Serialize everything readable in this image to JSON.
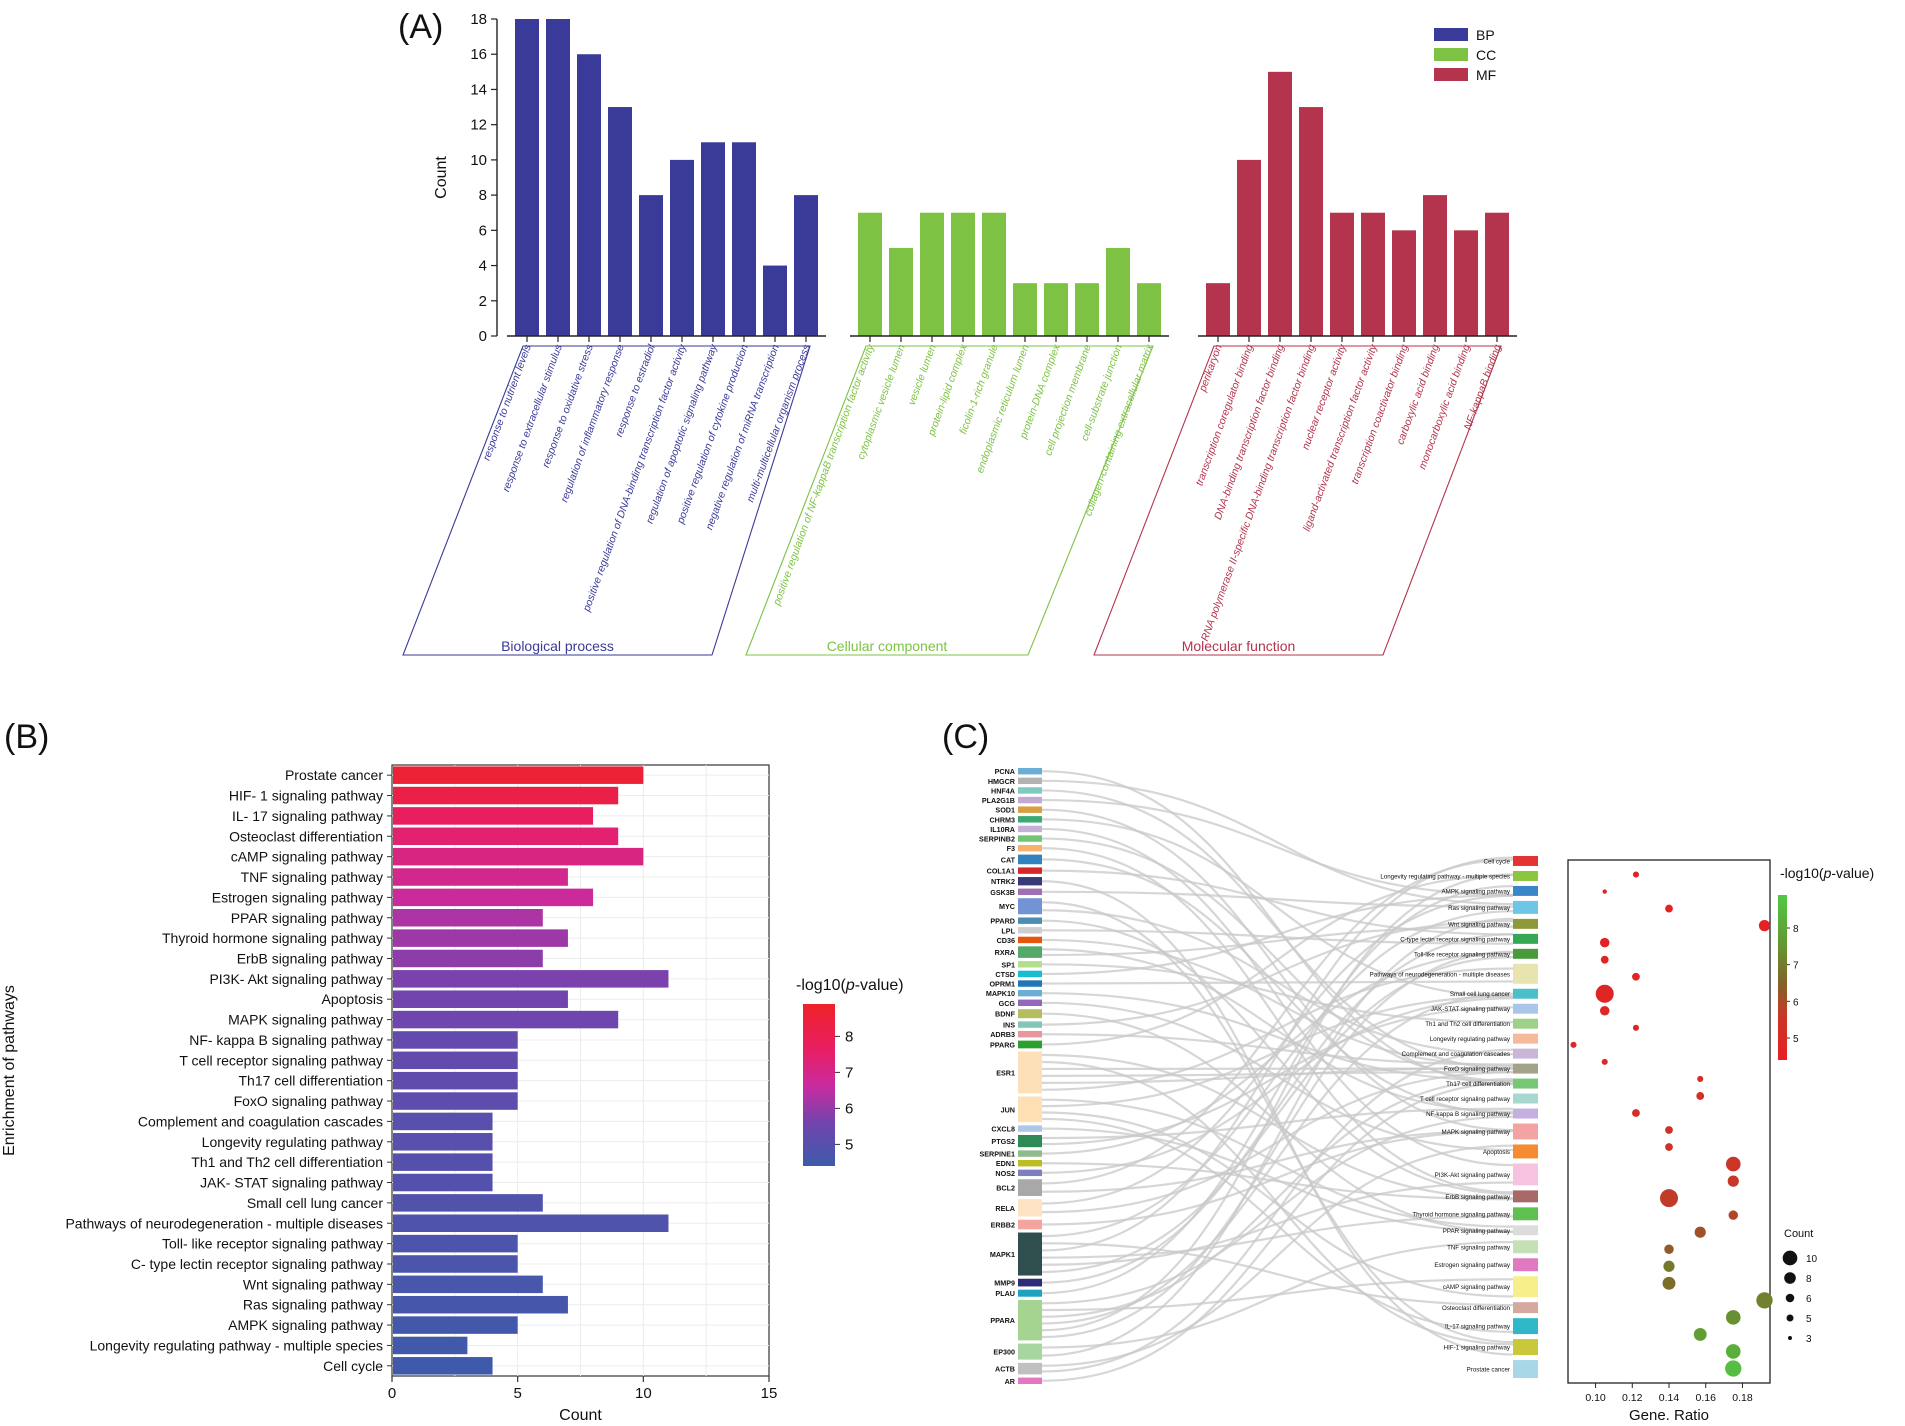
{
  "panels": {
    "a": "(A)",
    "b": "(B)",
    "c": "(C)"
  },
  "colors": {
    "BP": "#3a3a98",
    "CC": "#7dc243",
    "MF": "#b3344c",
    "flow": "#c8c8c8"
  },
  "chart_data": [
    {
      "type": "bar",
      "panel": "A",
      "ylabel": "Count",
      "ylim": [
        0,
        18
      ],
      "yticks": [
        0,
        2,
        4,
        6,
        8,
        10,
        12,
        14,
        16,
        18
      ],
      "legend": [
        "BP",
        "CC",
        "MF"
      ],
      "legend_position": "top-right",
      "groups": [
        {
          "key": "BP",
          "name": "Biological process",
          "categories": [
            "response to nutrient levels",
            "response to extracellular stimulus",
            "response to oxidative stress",
            "regulation of inflammatory response",
            "response to estradiol",
            "positive regulation of DNA-binding transcription factor activity",
            "regulation of apoptotic signaling pathway",
            "positive regulation of cytokine production",
            "negative regulation of miRNA transcription",
            "multi-multicellular organism process"
          ],
          "values": [
            18,
            18,
            16,
            13,
            8,
            10,
            11,
            11,
            4,
            8
          ]
        },
        {
          "key": "CC",
          "name": "Cellular component",
          "categories": [
            "positive regulation of NF-kappaB transcription factor activity",
            "cytoplasmic vesicle lumen",
            "vesicle lumen",
            "protein-lipid complex",
            "ficolin-1-rich granule",
            "endoplasmic reticulum lumen",
            "protein-DNA complex",
            "cell projection membrane",
            "cell-substrate junction",
            "collagen-containing extracellular matrix"
          ],
          "values": [
            7,
            5,
            7,
            7,
            7,
            3,
            3,
            3,
            5,
            3
          ]
        },
        {
          "key": "MF",
          "name": "Molecular function",
          "categories": [
            "perikaryon",
            "transcription coregulator binding",
            "DNA-binding transcription factor binding",
            "RNA polymerase II-specific DNA-binding transcription factor binding",
            "nuclear receptor activity",
            "ligand-activated transcription factor activity",
            "transcription coactivator binding",
            "carboxylic acid binding",
            "monocarboxylic acid binding",
            "NF-kappaB binding"
          ],
          "values": [
            3,
            10,
            15,
            13,
            7,
            7,
            6,
            8,
            6,
            7
          ]
        }
      ]
    },
    {
      "type": "bar",
      "panel": "B",
      "orientation": "horizontal",
      "xlabel": "Count",
      "ylabel": "Enrichment of pathways",
      "xlim": [
        0,
        15
      ],
      "xticks": [
        0,
        5,
        10,
        15
      ],
      "categories": [
        "Prostate cancer",
        "HIF- 1 signaling pathway",
        "IL- 17 signaling pathway",
        "Osteoclast differentiation",
        "cAMP signaling pathway",
        "TNF signaling pathway",
        "Estrogen signaling pathway",
        "PPAR signaling pathway",
        "Thyroid hormone signaling pathway",
        "ErbB signaling pathway",
        "PI3K- Akt signaling pathway",
        "Apoptosis",
        "MAPK signaling pathway",
        "NF- kappa B signaling pathway",
        "T cell receptor signaling pathway",
        "Th17 cell differentiation",
        "FoxO signaling pathway",
        "Complement and coagulation cascades",
        "Longevity regulating pathway",
        "Th1 and Th2 cell differentiation",
        "JAK- STAT signaling pathway",
        "Small cell lung cancer",
        "Pathways of neurodegeneration -  multiple diseases",
        "Toll- like receptor signaling pathway",
        "C- type lectin receptor signaling pathway",
        "Wnt signaling pathway",
        "Ras signaling pathway",
        "AMPK signaling pathway",
        "Longevity regulating pathway -  multiple species",
        "Cell cycle"
      ],
      "values": [
        10,
        9,
        8,
        9,
        10,
        7,
        8,
        6,
        7,
        6,
        11,
        7,
        9,
        5,
        5,
        5,
        5,
        4,
        4,
        4,
        4,
        6,
        11,
        5,
        5,
        6,
        7,
        5,
        3,
        4
      ],
      "neglog10p": [
        8.6,
        8.2,
        7.7,
        7.4,
        7.1,
        6.9,
        6.7,
        6.3,
        6.1,
        5.9,
        5.7,
        5.6,
        5.5,
        5.3,
        5.25,
        5.2,
        5.15,
        5.0,
        5.0,
        4.95,
        4.9,
        4.85,
        4.8,
        4.75,
        4.7,
        4.65,
        4.6,
        4.55,
        4.5,
        4.45
      ],
      "colorbar": {
        "title": "-log10(",
        "title_italic": "p",
        "title_end": "-value)",
        "ticks": [
          "8",
          "7",
          "6",
          "5"
        ],
        "tick_values": [
          8,
          7,
          6,
          5
        ],
        "range": [
          4.4,
          8.9
        ]
      }
    },
    {
      "type": "scatter",
      "panel": "C",
      "xlabel": "Gene. Ratio",
      "xlim": [
        0.085,
        0.195
      ],
      "xticks": [
        "0.10",
        "0.12",
        "0.14",
        "0.16",
        "0.18"
      ],
      "xtick_values": [
        0.1,
        0.12,
        0.14,
        0.16,
        0.18
      ],
      "pathways": [
        "Cell cycle",
        "Longevity regulating pathway - multiple species",
        "AMPK signaling pathway",
        "Ras signaling pathway",
        "Wnt signaling pathway",
        "C-type lectin receptor signaling pathway",
        "Toll-like receptor signaling pathway",
        "Pathways of neurodegeneration - multiple diseases",
        "Small cell lung cancer",
        "JAK-STAT signaling pathway",
        "Th1 and Th2 cell differentiation",
        "Longevity regulating pathway",
        "Complement and coagulation cascades",
        "FoxO signaling pathway",
        "Th17 cell differentiation",
        "T cell receptor signaling pathway",
        "NF-kappa B signaling pathway",
        "MAPK signaling pathway",
        "Apoptosis",
        "PI3K-Akt signaling pathway",
        "ErbB signaling pathway",
        "Thyroid hormone signaling pathway",
        "PPAR signaling pathway",
        "TNF signaling pathway",
        "Estrogen signaling pathway",
        "cAMP signaling pathway",
        "Osteoclast differentiation",
        "IL-17 signaling pathway",
        "HIF-1 signaling pathway",
        "Prostate cancer"
      ],
      "gene_ratio": [
        0.122,
        0.105,
        0.14,
        0.192,
        0.105,
        0.105,
        0.122,
        0.105,
        0.105,
        0.122,
        0.088,
        0.105,
        0.157,
        0.157,
        0.122,
        0.14,
        0.14,
        0.175,
        0.175,
        0.14,
        0.175,
        0.157,
        0.14,
        0.14,
        0.14,
        0.192,
        0.175,
        0.157,
        0.175,
        0.175
      ],
      "count": [
        4,
        3,
        5,
        7,
        6,
        5,
        5,
        11,
        6,
        4,
        4,
        4,
        4,
        5,
        5,
        5,
        5,
        9,
        7,
        11,
        6,
        7,
        6,
        7,
        8,
        10,
        9,
        8,
        9,
        10
      ],
      "neglog10p": [
        4.45,
        4.5,
        4.55,
        4.6,
        4.65,
        4.7,
        4.75,
        4.8,
        4.85,
        4.9,
        4.95,
        5.0,
        5.0,
        5.15,
        5.2,
        5.25,
        5.3,
        5.5,
        5.6,
        5.7,
        5.9,
        6.1,
        6.3,
        6.9,
        6.7,
        7.1,
        7.4,
        7.7,
        8.2,
        8.6
      ],
      "colorbar": {
        "title": "-log10(",
        "title_italic": "p",
        "title_end": "-value)",
        "ticks": [
          "8",
          "7",
          "6",
          "5"
        ],
        "tick_values": [
          8,
          7,
          6,
          5
        ],
        "range": [
          4.4,
          8.9
        ]
      },
      "size_legend": {
        "title": "Count",
        "labels": [
          "10",
          "8",
          "6",
          "5",
          "3"
        ],
        "values": [
          10,
          8,
          6,
          5,
          3
        ]
      },
      "genes": [
        "PCNA",
        "HMGCR",
        "HNF4A",
        "PLA2G1B",
        "SOD1",
        "CHRM3",
        "IL10RA",
        "SERPINB2",
        "F3",
        "CAT",
        "COL1A1",
        "NTRK2",
        "GSK3B",
        "MYC",
        "PPARD",
        "LPL",
        "CD36",
        "RXRA",
        "SP1",
        "CTSD",
        "OPRM1",
        "MAPK10",
        "GCG",
        "BDNF",
        "INS",
        "ADRB3",
        "PPARG",
        "ESR1",
        "JUN",
        "CXCL8",
        "PTGS2",
        "SERPINE1",
        "EDN1",
        "NOS2",
        "BCL2",
        "RELA",
        "ERBB2",
        "MAPK1",
        "MMP9",
        "PLAU",
        "PPARA",
        "EP300",
        "ACTB",
        "AR"
      ]
    }
  ]
}
